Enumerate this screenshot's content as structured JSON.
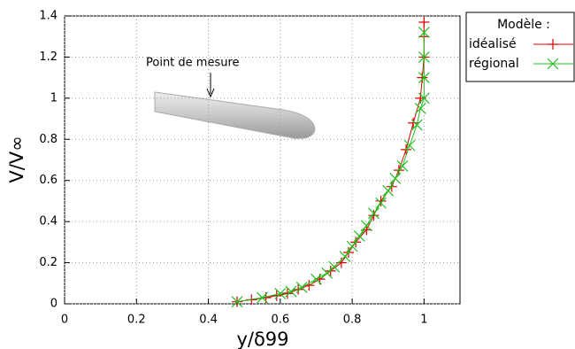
{
  "chart_data": {
    "type": "line",
    "x_label": "y/δ99",
    "y_label": "V/V∞",
    "annotation": "Point de mesure",
    "legend_title": "Modèle :",
    "xlim": [
      0,
      1.1
    ],
    "xticks": [
      0,
      0.2,
      0.4,
      0.6,
      0.8,
      1
    ],
    "ylim": [
      0,
      1.4
    ],
    "yticks": [
      0,
      0.2,
      0.4,
      0.6,
      0.8,
      1,
      1.2,
      1.4
    ],
    "grid": true,
    "legend": "outside-right",
    "series": [
      {
        "name": "idéalisé",
        "color": "#e00000",
        "marker": "plus",
        "x": [
          0.48,
          0.52,
          0.56,
          0.59,
          0.62,
          0.65,
          0.68,
          0.71,
          0.74,
          0.77,
          0.79,
          0.81,
          0.84,
          0.86,
          0.88,
          0.91,
          0.93,
          0.95,
          0.97,
          0.99,
          0.995,
          1.0,
          1.0,
          1.0
        ],
        "values": [
          0.01,
          0.02,
          0.03,
          0.04,
          0.05,
          0.07,
          0.09,
          0.12,
          0.16,
          0.2,
          0.25,
          0.3,
          0.36,
          0.43,
          0.5,
          0.57,
          0.65,
          0.75,
          0.88,
          1.0,
          1.1,
          1.2,
          1.3,
          1.37
        ]
      },
      {
        "name": "régional",
        "color": "#20c020",
        "marker": "cross",
        "x": [
          0.48,
          0.55,
          0.6,
          0.63,
          0.66,
          0.7,
          0.73,
          0.75,
          0.78,
          0.8,
          0.82,
          0.84,
          0.86,
          0.88,
          0.9,
          0.92,
          0.94,
          0.96,
          0.98,
          0.99,
          1.0,
          1.0,
          1.0,
          1.0
        ],
        "values": [
          0.01,
          0.03,
          0.05,
          0.06,
          0.08,
          0.12,
          0.15,
          0.18,
          0.23,
          0.28,
          0.33,
          0.38,
          0.44,
          0.49,
          0.55,
          0.61,
          0.67,
          0.77,
          0.87,
          0.95,
          1.0,
          1.1,
          1.2,
          1.32
        ]
      }
    ]
  }
}
